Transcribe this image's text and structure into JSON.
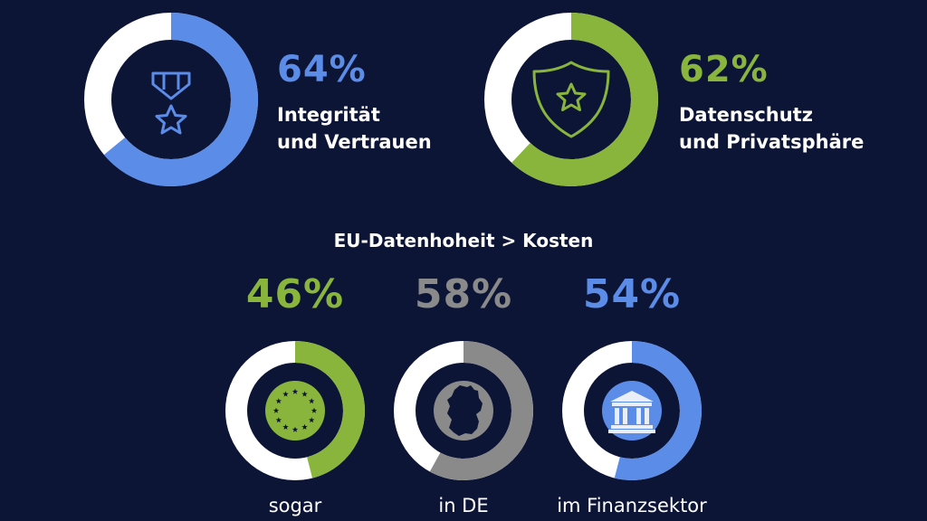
{
  "colors": {
    "background": "#0d1537",
    "blue": "#5b8ce8",
    "green": "#8ab53c",
    "gray": "#8a8a8a",
    "white": "#ffffff"
  },
  "icons": [
    "medal-icon",
    "shield-star-icon",
    "eu-stars-icon",
    "germany-map-icon",
    "bank-icon"
  ],
  "chart_data": [
    {
      "type": "pie",
      "variant": "donut",
      "value": 64,
      "value_label": "64%",
      "label_lines": [
        "Integrität",
        "und Vertrauen"
      ],
      "color": "#5b8ce8"
    },
    {
      "type": "pie",
      "variant": "donut",
      "value": 62,
      "value_label": "62%",
      "label_lines": [
        "Datenschutz",
        "und Privatsphäre"
      ],
      "color": "#8ab53c"
    },
    {
      "type": "pie",
      "variant": "donut",
      "group_title": "EU-Datenhoheit > Kosten",
      "value": 46,
      "value_label": "46%",
      "label": "sogar",
      "color": "#8ab53c"
    },
    {
      "type": "pie",
      "variant": "donut",
      "group_title": "EU-Datenhoheit > Kosten",
      "value": 58,
      "value_label": "58%",
      "label": "in DE",
      "color": "#8a8a8a"
    },
    {
      "type": "pie",
      "variant": "donut",
      "group_title": "EU-Datenhoheit > Kosten",
      "value": 54,
      "value_label": "54%",
      "label": "im Finanzsektor",
      "color": "#5b8ce8"
    }
  ],
  "section_heading": "EU-Datenhoheit > Kosten"
}
